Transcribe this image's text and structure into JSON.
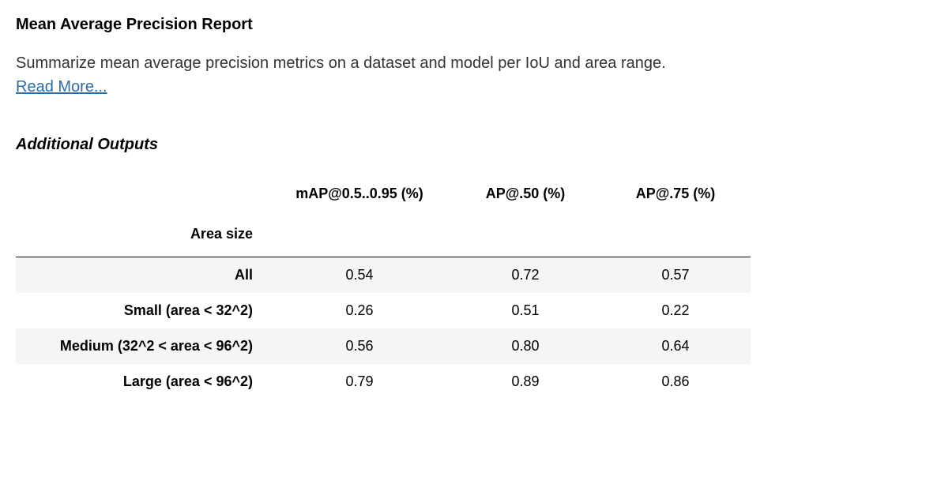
{
  "report": {
    "title": "Mean Average Precision Report",
    "description": "Summarize mean average precision metrics on a dataset and model per IoU and area range.",
    "read_more_label": "Read More...",
    "section_heading": "Additional Outputs"
  },
  "table": {
    "index_label": "Area size",
    "columns": [
      "mAP@0.5..0.95 (%)",
      "AP@.50 (%)",
      "AP@.75 (%)"
    ],
    "rows": [
      {
        "label": "All",
        "values": [
          "0.54",
          "0.72",
          "0.57"
        ]
      },
      {
        "label": "Small (area < 32^2)",
        "values": [
          "0.26",
          "0.51",
          "0.22"
        ]
      },
      {
        "label": "Medium (32^2 < area < 96^2)",
        "values": [
          "0.56",
          "0.80",
          "0.64"
        ]
      },
      {
        "label": "Large (area < 96^2)",
        "values": [
          "0.79",
          "0.89",
          "0.86"
        ]
      }
    ],
    "stripe_color": "#f5f5f5",
    "background_color": "#ffffff",
    "border_color": "#000000",
    "font_size": 18
  },
  "colors": {
    "text": "#000000",
    "description": "#333333",
    "link": "#2e6da4",
    "background": "#ffffff"
  }
}
